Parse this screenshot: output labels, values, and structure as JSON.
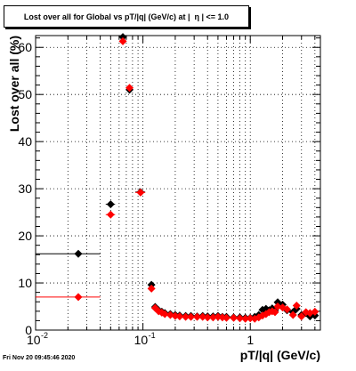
{
  "title": "Lost over all for Global vs pT/|q| (GeV/c) at |  η | <= 1.0",
  "footer": "Fri Nov 20 09:45:46 2020",
  "colors": {
    "series_black": "#000000",
    "series_red": "#ff0000",
    "grid": "#000000"
  },
  "chart_data": {
    "type": "scatter",
    "title": "Lost over all for Global vs pT/|q| (GeV/c) at |  η | <= 1.0",
    "xlabel": "pT/|q| (GeV/c)",
    "ylabel": "Lost over all (%)",
    "xscale": "log",
    "xlim": [
      0.01,
      4.5
    ],
    "ylim": [
      0,
      62.5
    ],
    "x_ticks": [
      "10^-2",
      "10^-1",
      "1"
    ],
    "y_ticks": [
      "0",
      "10",
      "20",
      "30",
      "40",
      "50",
      "60"
    ],
    "grid": true,
    "series": [
      {
        "color": "#000000",
        "marker": "diamond",
        "points": [
          {
            "x": 0.025,
            "y": 16.2,
            "xlo": 0.01,
            "xhi": 0.04
          },
          {
            "x": 0.05,
            "y": 26.7,
            "xlo": 0.045,
            "xhi": 0.055
          },
          {
            "x": 0.065,
            "y": 62.2,
            "xlo": 0.062,
            "xhi": 0.068
          },
          {
            "x": 0.075,
            "y": 51.0,
            "xlo": 0.071,
            "xhi": 0.079
          },
          {
            "x": 0.095,
            "y": 29.3,
            "xlo": 0.085,
            "xhi": 0.105
          },
          {
            "x": 0.12,
            "y": 9.6,
            "xlo": 0.115,
            "xhi": 0.125
          },
          {
            "x": 0.13,
            "y": 4.9
          },
          {
            "x": 0.14,
            "y": 4.2
          },
          {
            "x": 0.15,
            "y": 3.9
          },
          {
            "x": 0.16,
            "y": 3.6
          },
          {
            "x": 0.18,
            "y": 3.4
          },
          {
            "x": 0.2,
            "y": 3.2
          },
          {
            "x": 0.22,
            "y": 3.1
          },
          {
            "x": 0.25,
            "y": 3.0
          },
          {
            "x": 0.28,
            "y": 3.0
          },
          {
            "x": 0.32,
            "y": 2.9
          },
          {
            "x": 0.36,
            "y": 3.0
          },
          {
            "x": 0.4,
            "y": 2.9
          },
          {
            "x": 0.45,
            "y": 2.9
          },
          {
            "x": 0.5,
            "y": 3.0
          },
          {
            "x": 0.55,
            "y": 2.8
          },
          {
            "x": 0.6,
            "y": 2.8
          },
          {
            "x": 0.7,
            "y": 2.7
          },
          {
            "x": 0.8,
            "y": 2.7
          },
          {
            "x": 0.9,
            "y": 2.6
          },
          {
            "x": 1.0,
            "y": 2.6
          },
          {
            "x": 1.1,
            "y": 2.8
          },
          {
            "x": 1.2,
            "y": 3.2
          },
          {
            "x": 1.3,
            "y": 4.3
          },
          {
            "x": 1.4,
            "y": 4.5
          },
          {
            "x": 1.5,
            "y": 4.2
          },
          {
            "x": 1.6,
            "y": 4.6
          },
          {
            "x": 1.7,
            "y": 4.2
          },
          {
            "x": 1.8,
            "y": 5.9
          },
          {
            "x": 2.0,
            "y": 5.4
          },
          {
            "x": 2.2,
            "y": 4.2
          },
          {
            "x": 2.5,
            "y": 3.8
          },
          {
            "x": 2.7,
            "y": 4.5
          },
          {
            "x": 3.0,
            "y": 3.2
          },
          {
            "x": 3.3,
            "y": 3.6
          },
          {
            "x": 3.6,
            "y": 2.9
          },
          {
            "x": 4.0,
            "y": 3.1
          }
        ]
      },
      {
        "color": "#ff0000",
        "marker": "diamond",
        "points": [
          {
            "x": 0.025,
            "y": 7.0,
            "xlo": 0.01,
            "xhi": 0.04
          },
          {
            "x": 0.05,
            "y": 24.5,
            "xlo": 0.045,
            "xhi": 0.055
          },
          {
            "x": 0.065,
            "y": 61.3,
            "xlo": 0.062,
            "xhi": 0.068
          },
          {
            "x": 0.075,
            "y": 51.4,
            "xlo": 0.071,
            "xhi": 0.079
          },
          {
            "x": 0.095,
            "y": 29.2,
            "xlo": 0.085,
            "xhi": 0.105
          },
          {
            "x": 0.12,
            "y": 8.8,
            "xlo": 0.115,
            "xhi": 0.125
          },
          {
            "x": 0.13,
            "y": 4.7
          },
          {
            "x": 0.14,
            "y": 4.0
          },
          {
            "x": 0.15,
            "y": 3.7
          },
          {
            "x": 0.16,
            "y": 3.4
          },
          {
            "x": 0.18,
            "y": 3.2
          },
          {
            "x": 0.2,
            "y": 3.0
          },
          {
            "x": 0.22,
            "y": 2.9
          },
          {
            "x": 0.25,
            "y": 2.8
          },
          {
            "x": 0.28,
            "y": 2.8
          },
          {
            "x": 0.32,
            "y": 2.8
          },
          {
            "x": 0.36,
            "y": 2.8
          },
          {
            "x": 0.4,
            "y": 2.7
          },
          {
            "x": 0.45,
            "y": 2.7
          },
          {
            "x": 0.5,
            "y": 2.8
          },
          {
            "x": 0.55,
            "y": 2.7
          },
          {
            "x": 0.6,
            "y": 2.6
          },
          {
            "x": 0.7,
            "y": 2.6
          },
          {
            "x": 0.8,
            "y": 2.5
          },
          {
            "x": 0.9,
            "y": 2.4
          },
          {
            "x": 1.0,
            "y": 2.5
          },
          {
            "x": 1.1,
            "y": 2.4
          },
          {
            "x": 1.2,
            "y": 2.7
          },
          {
            "x": 1.3,
            "y": 3.1
          },
          {
            "x": 1.4,
            "y": 3.4
          },
          {
            "x": 1.5,
            "y": 3.8
          },
          {
            "x": 1.6,
            "y": 4.0
          },
          {
            "x": 1.7,
            "y": 3.8
          },
          {
            "x": 1.8,
            "y": 5.0
          },
          {
            "x": 2.0,
            "y": 4.8
          },
          {
            "x": 2.2,
            "y": 4.4
          },
          {
            "x": 2.5,
            "y": 3.2
          },
          {
            "x": 2.7,
            "y": 5.2
          },
          {
            "x": 3.0,
            "y": 2.9
          },
          {
            "x": 3.3,
            "y": 3.8
          },
          {
            "x": 3.6,
            "y": 3.6
          },
          {
            "x": 4.0,
            "y": 3.9
          }
        ]
      }
    ]
  }
}
